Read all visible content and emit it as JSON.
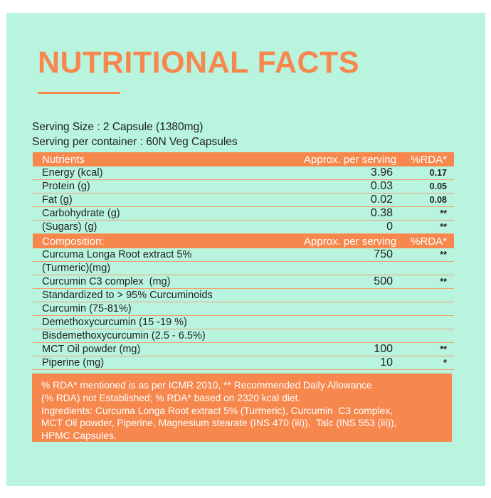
{
  "title": "NUTRITIONAL FACTS",
  "serving": {
    "size": "Serving Size : 2 Capsule (1380mg)",
    "container": "Serving per container : 60N Veg Capsules"
  },
  "table": {
    "sections": [
      {
        "header": {
          "col1": "Nutrients",
          "col2": "Approx. per serving",
          "col3": "%RDA*"
        },
        "rows": [
          {
            "name": "Energy (kcal)",
            "serving": "3.96",
            "rda": "0.17"
          },
          {
            "name": "Protein (g)",
            "serving": "0.03",
            "rda": "0.05"
          },
          {
            "name": "Fat (g)",
            "serving": "0.02",
            "rda": "0.08"
          },
          {
            "name": "Carbohydrate (g)",
            "serving": "0.38",
            "rda": "**"
          },
          {
            "name": "(Sugars) (g)",
            "serving": "0",
            "rda": "**"
          }
        ]
      },
      {
        "header": {
          "col1": "Composition:",
          "col2": "Approx. per serving",
          "col3": "%RDA*"
        },
        "rows": [
          {
            "name": "Curcuma Longa Root extract 5%",
            "serving": "750",
            "rda": "**"
          },
          {
            "name": "(Turmeric)(mg)",
            "serving": "",
            "rda": ""
          },
          {
            "name": "Curcumin C3 complex  (mg)",
            "serving": "500",
            "rda": "**"
          },
          {
            "name": "Standardized to > 95% Curcuminoids",
            "serving": "",
            "rda": ""
          },
          {
            "name": "Curcumin (75-81%)",
            "serving": "",
            "rda": ""
          },
          {
            "name": "Demethoxycurcumin (15 -19 %)",
            "serving": "",
            "rda": ""
          },
          {
            "name": "Bisdemethoxycurcumin (2.5 - 6.5%)",
            "serving": "",
            "rda": ""
          },
          {
            "name": "MCT Oil powder (mg)",
            "serving": "100",
            "rda": "**"
          },
          {
            "name": "Piperine (mg)",
            "serving": "10",
            "rda": "*"
          }
        ]
      }
    ]
  },
  "footnote": {
    "lines": [
      "% RDA* mentioned is as per ICMR 2010, ** Recommended Daily Allowance",
      "(% RDA) not Established; % RDA* based on 2320 kcal diet.",
      "Ingredients: Curcuma Longa Root extract 5% (Turmeric), Curcumin  C3 complex,",
      "MCT Oil powder, Piperine, Magnesium stearate (INS 470 (iii)),  Talc (INS 553 (iii)),",
      "HPMC Capsules."
    ]
  },
  "colors": {
    "background": "#ffffff",
    "panel_green": "#b9f4df",
    "accent_orange": "#f6874d",
    "divider_orange": "#efa36e",
    "text_dark": "#21211f",
    "header_text": "#ffffff"
  }
}
